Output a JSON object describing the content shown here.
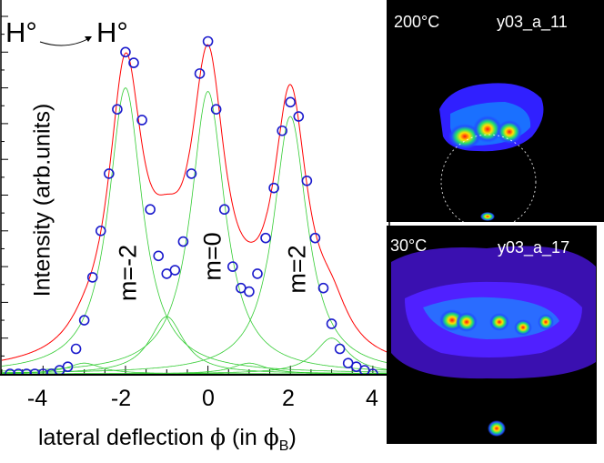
{
  "chart_data": {
    "type": "scatter",
    "title_left": "H°",
    "title_right": "H°",
    "xlabel": "lateral deflection",
    "xlabel_symbol": "ϕ",
    "xlabel_units_open": "(in ",
    "xlabel_units_symbol": "ϕ",
    "xlabel_units_sub": "B",
    "xlabel_units_close": ")",
    "ylabel": "Intensity (arb.units)",
    "xlim": [
      -5,
      4.4
    ],
    "ylim": [
      0,
      1.0
    ],
    "xticks": [
      -4,
      -2,
      0,
      2,
      4
    ],
    "xtick_labels": [
      "-4",
      "-2",
      "0",
      "2",
      "4"
    ],
    "peak_labels": [
      "m=-2",
      "m=0",
      "m=2"
    ],
    "components": [
      {
        "center": -3,
        "amp": 0.03,
        "width": 0.5
      },
      {
        "center": -2,
        "amp": 0.8,
        "width": 0.5
      },
      {
        "center": -1,
        "amp": 0.16,
        "width": 0.5
      },
      {
        "center": 0,
        "amp": 0.79,
        "width": 0.5
      },
      {
        "center": 1,
        "amp": 0.03,
        "width": 0.5
      },
      {
        "center": 2,
        "amp": 0.72,
        "width": 0.5
      },
      {
        "center": 3,
        "amp": 0.1,
        "width": 0.5
      }
    ],
    "series": [
      {
        "name": "measured",
        "x": [
          -4.8,
          -4.6,
          -4.4,
          -4.2,
          -4.0,
          -3.8,
          -3.6,
          -3.4,
          -3.2,
          -3.0,
          -2.8,
          -2.6,
          -2.4,
          -2.2,
          -2.0,
          -1.8,
          -1.6,
          -1.4,
          -1.2,
          -1.0,
          -0.8,
          -0.6,
          -0.4,
          -0.2,
          0.0,
          0.2,
          0.4,
          0.6,
          0.8,
          1.0,
          1.2,
          1.4,
          1.6,
          1.8,
          2.0,
          2.2,
          2.4,
          2.6,
          2.8,
          3.0,
          3.2,
          3.4,
          3.6,
          3.8,
          4.0
        ],
        "y": [
          0.0,
          0.0,
          0.0,
          0.0,
          0.0,
          0.0,
          0.01,
          0.02,
          0.07,
          0.15,
          0.27,
          0.4,
          0.56,
          0.74,
          0.9,
          0.87,
          0.71,
          0.46,
          0.33,
          0.28,
          0.29,
          0.37,
          0.56,
          0.84,
          0.93,
          0.74,
          0.46,
          0.3,
          0.24,
          0.23,
          0.28,
          0.38,
          0.52,
          0.68,
          0.76,
          0.72,
          0.54,
          0.38,
          0.24,
          0.14,
          0.07,
          0.03,
          0.02,
          0.01,
          0.0
        ]
      }
    ]
  },
  "panels": {
    "top": {
      "temp": "200°C",
      "id": "y03_a_11"
    },
    "bottom": {
      "temp": "30°C",
      "id": "y03_a_17"
    }
  }
}
